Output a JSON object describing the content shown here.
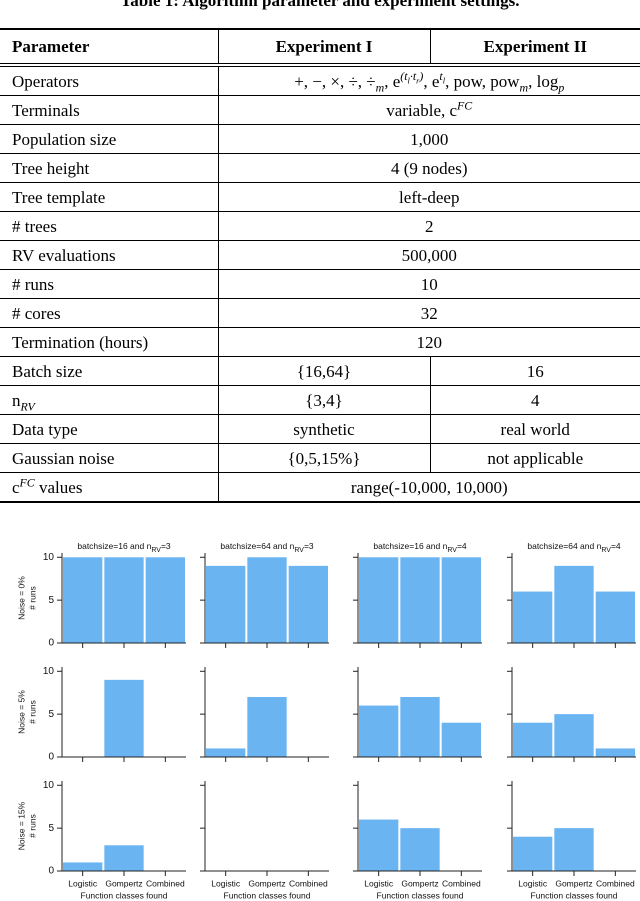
{
  "caption": "Table 1: Algorithm parameter and experiment settings.",
  "table": {
    "header": [
      "Parameter",
      "Experiment I",
      "Experiment II"
    ],
    "rows": [
      [
        [
          {
            "t": "Operators"
          }
        ],
        [
          {
            "t": "+, −, ×, ÷, ÷",
            "sub": "m"
          },
          {
            "t": ", e",
            "sup": [
              {
                "t": "(t",
                "sub": "l"
              },
              {
                "t": "·t",
                "sub": "r"
              },
              {
                "t": ")"
              }
            ]
          },
          {
            "t": ", e",
            "sup": [
              {
                "t": "t",
                "sub": "l"
              }
            ]
          },
          {
            "t": ", pow, pow",
            "sub": "m"
          },
          {
            "t": ", log",
            "sub": "p"
          }
        ]
      ],
      [
        [
          {
            "t": "Terminals"
          }
        ],
        [
          {
            "t": "variable, "
          },
          {
            "t": "c",
            "sup": "FC"
          }
        ]
      ],
      [
        [
          {
            "t": "Population size"
          }
        ],
        [
          {
            "t": "1,000"
          }
        ]
      ],
      [
        [
          {
            "t": "Tree height"
          }
        ],
        [
          {
            "t": "4 (9 nodes)"
          }
        ]
      ],
      [
        [
          {
            "t": "Tree template"
          }
        ],
        [
          {
            "t": "left-deep"
          }
        ]
      ],
      [
        [
          {
            "t": "# trees"
          }
        ],
        [
          {
            "t": "2"
          }
        ]
      ],
      [
        [
          {
            "t": "RV evaluations"
          }
        ],
        [
          {
            "t": "500,000"
          }
        ]
      ],
      [
        [
          {
            "t": "# runs"
          }
        ],
        [
          {
            "t": "10"
          }
        ]
      ],
      [
        [
          {
            "t": "# cores"
          }
        ],
        [
          {
            "t": "32"
          }
        ]
      ],
      [
        [
          {
            "t": "Termination (hours)"
          }
        ],
        [
          {
            "t": "120"
          }
        ]
      ],
      [
        [
          {
            "t": "Batch size"
          }
        ],
        [
          {
            "t": "{16,64}"
          }
        ],
        [
          {
            "t": "16"
          }
        ]
      ],
      [
        [
          {
            "t": "n",
            "sub": "RV"
          }
        ],
        [
          {
            "t": "{3,4}"
          }
        ],
        [
          {
            "t": "4"
          }
        ]
      ],
      [
        [
          {
            "t": "Data type"
          }
        ],
        [
          {
            "t": "synthetic"
          }
        ],
        [
          {
            "t": "real world"
          }
        ]
      ],
      [
        [
          {
            "t": "Gaussian noise"
          }
        ],
        [
          {
            "t": "{0,5,15%}"
          }
        ],
        [
          {
            "t": "not applicable"
          }
        ]
      ],
      [
        [
          {
            "t": "c",
            "sup": "FC"
          },
          {
            "t": " values"
          }
        ],
        [
          {
            "t": "range(-10,000, 10,000)"
          }
        ]
      ]
    ]
  },
  "chart_data": [
    {
      "type": "bar",
      "title": [
        {
          "t": "batchsize=16 and n",
          "sub": "RV"
        },
        {
          "t": "=3"
        }
      ],
      "ylabel": [
        "Noise = 0%",
        "# runs"
      ],
      "values": [
        10,
        10,
        10
      ],
      "color": "#6ab4f2",
      "ylim": [
        0,
        10.5
      ],
      "yticks": [
        0,
        5,
        10
      ]
    },
    {
      "type": "bar",
      "title": [
        {
          "t": "batchsize=64 and n",
          "sub": "RV"
        },
        {
          "t": "=3"
        }
      ],
      "values": [
        9,
        10,
        9
      ],
      "color": "#6ab4f2",
      "ylim": [
        0,
        10.5
      ],
      "yticks": [
        0,
        5,
        10
      ]
    },
    {
      "type": "bar",
      "title": [
        {
          "t": "batchsize=16 and n",
          "sub": "RV"
        },
        {
          "t": "=4"
        }
      ],
      "values": [
        10,
        10,
        10
      ],
      "color": "#6ab4f2",
      "ylim": [
        0,
        10.5
      ],
      "yticks": [
        0,
        5,
        10
      ]
    },
    {
      "type": "bar",
      "title": [
        {
          "t": "batchsize=64 and n",
          "sub": "RV"
        },
        {
          "t": "=4"
        }
      ],
      "values": [
        6,
        9,
        6
      ],
      "color": "#6ab4f2",
      "ylim": [
        0,
        10.5
      ],
      "yticks": [
        0,
        5,
        10
      ]
    },
    {
      "type": "bar",
      "ylabel": [
        "Noise = 5%",
        "# runs"
      ],
      "values": [
        0,
        9,
        0
      ],
      "color": "#6ab4f2",
      "ylim": [
        0,
        10.5
      ],
      "yticks": [
        0,
        5,
        10
      ]
    },
    {
      "type": "bar",
      "values": [
        1,
        7,
        0
      ],
      "color": "#6ab4f2",
      "ylim": [
        0,
        10.5
      ],
      "yticks": [
        0,
        5,
        10
      ]
    },
    {
      "type": "bar",
      "values": [
        6,
        7,
        4
      ],
      "color": "#6ab4f2",
      "ylim": [
        0,
        10.5
      ],
      "yticks": [
        0,
        5,
        10
      ]
    },
    {
      "type": "bar",
      "values": [
        4,
        5,
        1
      ],
      "color": "#6ab4f2",
      "ylim": [
        0,
        10.5
      ],
      "yticks": [
        0,
        5,
        10
      ]
    },
    {
      "type": "bar",
      "ylabel": [
        "Noise = 15%",
        "# runs"
      ],
      "categories": [
        "Logistic",
        "Gompertz",
        "Combined"
      ],
      "xlabel": "Function classes found",
      "values": [
        1,
        3,
        0
      ],
      "color": "#6ab4f2",
      "ylim": [
        0,
        10.5
      ],
      "yticks": [
        0,
        5,
        10
      ]
    },
    {
      "type": "bar",
      "categories": [
        "Logistic",
        "Gompertz",
        "Combined"
      ],
      "xlabel": "Function classes found",
      "values": [
        0,
        0,
        0
      ],
      "color": "#6ab4f2",
      "ylim": [
        0,
        10.5
      ],
      "yticks": [
        0,
        5,
        10
      ]
    },
    {
      "type": "bar",
      "categories": [
        "Logistic",
        "Gompertz",
        "Combined"
      ],
      "xlabel": "Function classes found",
      "values": [
        6,
        5,
        0
      ],
      "color": "#6ab4f2",
      "ylim": [
        0,
        10.5
      ],
      "yticks": [
        0,
        5,
        10
      ]
    },
    {
      "type": "bar",
      "categories": [
        "Logistic",
        "Gompertz",
        "Combined"
      ],
      "xlabel": "Function classes found",
      "values": [
        4,
        5,
        0
      ],
      "color": "#6ab4f2",
      "ylim": [
        0,
        10.5
      ],
      "yticks": [
        0,
        5,
        10
      ]
    }
  ]
}
